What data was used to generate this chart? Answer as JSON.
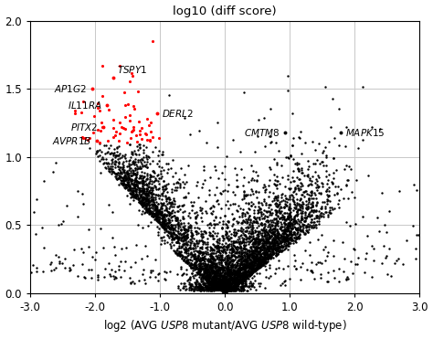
{
  "title": "log10 (diff score)",
  "xlim": [
    -3.0,
    3.0
  ],
  "ylim": [
    0.0,
    2.0
  ],
  "xticks": [
    -3.0,
    -2.0,
    -1.0,
    0.0,
    1.0,
    2.0,
    3.0
  ],
  "yticks": [
    0.0,
    0.5,
    1.0,
    1.5,
    2.0
  ],
  "red_threshold_x": -1.0,
  "red_threshold_y": 1.1,
  "labeled_points": {
    "TSPY1": [
      -1.72,
      1.58
    ],
    "AP1G2": [
      -2.05,
      1.5
    ],
    "IL11RA": [
      -1.82,
      1.38
    ],
    "DERL2": [
      -1.05,
      1.32
    ],
    "PITX2": [
      -1.88,
      1.22
    ],
    "AVPR1B": [
      -1.98,
      1.12
    ],
    "CMTM8": [
      0.93,
      1.18
    ],
    "MAPK15": [
      1.78,
      1.18
    ]
  },
  "background_color": "#ffffff",
  "grid_color": "#c8c8c8",
  "point_size_black": 3,
  "point_size_red": 5,
  "black_color": "#000000",
  "red_color": "#ff0000"
}
